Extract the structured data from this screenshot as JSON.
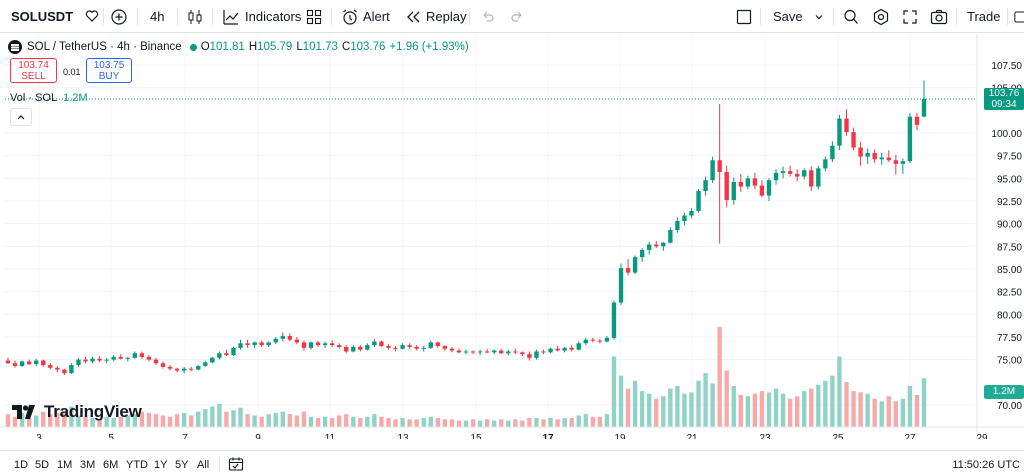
{
  "toolbar": {
    "symbol": "SOLUSDT",
    "interval": "4h",
    "indicators_label": "Indicators",
    "alert_label": "Alert",
    "replay_label": "Replay",
    "save_label": "Save",
    "trade_label": "Trade"
  },
  "legend": {
    "title": "SOL / TetherUS · 4h · Binance",
    "open_key": "O",
    "open_val": "101.81",
    "high_key": "H",
    "high_val": "105.79",
    "low_key": "L",
    "low_val": "101.73",
    "close_key": "C",
    "close_val": "103.76",
    "change": "+1.96 (+1.93%)"
  },
  "trade": {
    "sell_price": "103.74",
    "sell_label": "SELL",
    "spread": "0.01",
    "buy_price": "103.75",
    "buy_label": "BUY"
  },
  "volume_legend": {
    "label": "Vol · SOL",
    "value": "1.2M"
  },
  "price_axis": {
    "ticks": [
      "107.50",
      "105.00",
      "100.00",
      "97.50",
      "95.00",
      "92.50",
      "90.00",
      "87.50",
      "85.00",
      "82.50",
      "80.00",
      "77.50",
      "75.00",
      "70.00"
    ],
    "last_price": "103.76",
    "countdown": "09:34",
    "volume_badge": "1.2M"
  },
  "time_axis": {
    "ticks": [
      "3",
      "5",
      "7",
      "9",
      "11",
      "13",
      "15",
      "17",
      "19",
      "21",
      "23",
      "25",
      "27",
      "29"
    ]
  },
  "watermark": "TradingView",
  "bottom": {
    "ranges": [
      "1D",
      "5D",
      "1M",
      "3M",
      "6M",
      "YTD",
      "1Y",
      "5Y",
      "All"
    ],
    "clock": "11:50:26 UTC"
  },
  "colors": {
    "up": "#089981",
    "down": "#f23645",
    "up_vol": "#8fd3c6",
    "down_vol": "#f7a9a7"
  },
  "chart_data": {
    "type": "candlestick",
    "title": "SOL / TetherUS · 4h · Binance",
    "ylim": [
      69,
      108.5
    ],
    "y_ticks": [
      70,
      75,
      77.5,
      80,
      82.5,
      85,
      87.5,
      90,
      92.5,
      95,
      97.5,
      100,
      105,
      107.5
    ],
    "x_ticks": [
      "3",
      "5",
      "7",
      "9",
      "11",
      "13",
      "15",
      "17",
      "19",
      "21",
      "23",
      "25",
      "27",
      "29"
    ],
    "last_close": 103.76,
    "candles": [
      [
        74.9,
        75.2,
        74.5,
        74.6
      ],
      [
        74.6,
        74.9,
        74.1,
        74.3
      ],
      [
        74.3,
        74.9,
        74.2,
        74.8
      ],
      [
        74.8,
        75.0,
        74.4,
        74.5
      ],
      [
        74.5,
        75.1,
        74.3,
        74.9
      ],
      [
        74.9,
        75.0,
        74.2,
        74.4
      ],
      [
        74.4,
        74.6,
        73.9,
        74.1
      ],
      [
        74.1,
        74.3,
        73.6,
        73.9
      ],
      [
        73.9,
        74.0,
        73.3,
        73.5
      ],
      [
        73.5,
        74.6,
        73.4,
        74.4
      ],
      [
        74.4,
        75.2,
        74.2,
        75.0
      ],
      [
        75.0,
        75.3,
        74.6,
        74.8
      ],
      [
        74.8,
        75.3,
        74.6,
        75.1
      ],
      [
        75.1,
        75.4,
        74.7,
        74.9
      ],
      [
        74.9,
        75.2,
        74.6,
        75.0
      ],
      [
        75.0,
        75.5,
        74.8,
        75.3
      ],
      [
        75.3,
        75.6,
        75.0,
        75.1
      ],
      [
        75.1,
        75.3,
        74.8,
        75.2
      ],
      [
        75.2,
        75.9,
        75.1,
        75.7
      ],
      [
        75.7,
        75.9,
        75.1,
        75.3
      ],
      [
        75.3,
        75.5,
        74.8,
        75.0
      ],
      [
        75.0,
        75.2,
        74.4,
        74.6
      ],
      [
        74.6,
        74.8,
        74.0,
        74.2
      ],
      [
        74.2,
        74.4,
        73.8,
        74.0
      ],
      [
        74.0,
        74.1,
        73.6,
        73.8
      ],
      [
        73.8,
        74.2,
        73.5,
        74.0
      ],
      [
        74.0,
        74.2,
        73.7,
        73.9
      ],
      [
        73.9,
        74.4,
        73.8,
        74.3
      ],
      [
        74.3,
        74.9,
        74.2,
        74.7
      ],
      [
        74.7,
        75.3,
        74.6,
        75.2
      ],
      [
        75.2,
        75.9,
        75.0,
        75.7
      ],
      [
        75.7,
        76.1,
        75.4,
        75.5
      ],
      [
        75.5,
        76.4,
        75.4,
        76.3
      ],
      [
        76.3,
        77.2,
        76.1,
        76.8
      ],
      [
        76.8,
        77.2,
        76.3,
        76.6
      ],
      [
        76.6,
        77.0,
        76.3,
        76.9
      ],
      [
        76.9,
        77.1,
        76.4,
        76.6
      ],
      [
        76.6,
        77.0,
        76.4,
        76.9
      ],
      [
        76.9,
        77.5,
        76.7,
        77.3
      ],
      [
        77.3,
        78.0,
        77.0,
        77.6
      ],
      [
        77.6,
        77.9,
        77.0,
        77.2
      ],
      [
        77.2,
        77.5,
        76.7,
        76.9
      ],
      [
        76.9,
        77.1,
        76.0,
        76.3
      ],
      [
        76.3,
        77.0,
        76.1,
        76.9
      ],
      [
        76.9,
        77.1,
        76.4,
        76.6
      ],
      [
        76.6,
        77.0,
        76.3,
        76.8
      ],
      [
        76.8,
        77.1,
        76.4,
        76.6
      ],
      [
        76.6,
        76.8,
        76.2,
        76.4
      ],
      [
        76.4,
        76.6,
        75.7,
        75.9
      ],
      [
        75.9,
        76.6,
        75.8,
        76.4
      ],
      [
        76.4,
        76.6,
        75.9,
        76.1
      ],
      [
        76.1,
        76.8,
        76.0,
        76.6
      ],
      [
        76.6,
        77.3,
        76.4,
        77.0
      ],
      [
        77.0,
        77.1,
        76.4,
        76.5
      ],
      [
        76.5,
        76.7,
        76.1,
        76.3
      ],
      [
        76.3,
        76.5,
        75.9,
        76.2
      ],
      [
        76.2,
        76.8,
        76.1,
        76.6
      ],
      [
        76.6,
        76.8,
        76.2,
        76.4
      ],
      [
        76.4,
        76.6,
        76.0,
        76.2
      ],
      [
        76.2,
        76.5,
        75.9,
        76.3
      ],
      [
        76.3,
        77.1,
        76.2,
        76.9
      ],
      [
        76.9,
        77.0,
        76.3,
        76.5
      ],
      [
        76.5,
        76.6,
        76.0,
        76.2
      ],
      [
        76.2,
        76.4,
        75.8,
        76.0
      ],
      [
        76.0,
        76.2,
        75.7,
        75.8
      ],
      [
        75.8,
        76.1,
        75.6,
        75.9
      ],
      [
        75.9,
        76.0,
        75.6,
        75.8
      ],
      [
        75.8,
        76.1,
        75.5,
        75.9
      ],
      [
        75.9,
        76.2,
        75.7,
        75.8
      ],
      [
        75.8,
        76.1,
        75.6,
        76.0
      ],
      [
        76.0,
        76.2,
        75.6,
        75.7
      ],
      [
        75.7,
        76.1,
        75.5,
        75.9
      ],
      [
        75.9,
        76.2,
        75.6,
        75.8
      ],
      [
        75.8,
        75.9,
        75.4,
        75.6
      ],
      [
        75.6,
        75.9,
        74.9,
        75.2
      ],
      [
        75.2,
        76.1,
        75.0,
        75.9
      ],
      [
        75.9,
        76.1,
        75.6,
        75.8
      ],
      [
        75.8,
        76.3,
        75.7,
        76.2
      ],
      [
        76.2,
        76.5,
        75.9,
        76.0
      ],
      [
        76.0,
        76.4,
        75.8,
        76.3
      ],
      [
        76.3,
        76.6,
        75.9,
        76.1
      ],
      [
        76.1,
        77.0,
        76.0,
        76.8
      ],
      [
        76.8,
        77.4,
        76.6,
        77.2
      ],
      [
        77.2,
        77.4,
        76.9,
        77.1
      ],
      [
        77.1,
        77.3,
        76.8,
        77.0
      ],
      [
        77.0,
        77.6,
        76.9,
        77.4
      ],
      [
        77.4,
        81.5,
        77.2,
        81.3
      ],
      [
        81.3,
        85.6,
        81.0,
        85.1
      ],
      [
        85.1,
        86.1,
        84.3,
        84.6
      ],
      [
        84.6,
        86.5,
        84.4,
        86.3
      ],
      [
        86.3,
        87.3,
        85.8,
        87.1
      ],
      [
        87.1,
        88.0,
        86.6,
        87.7
      ],
      [
        87.7,
        88.1,
        87.3,
        87.5
      ],
      [
        87.5,
        88.0,
        87.0,
        87.9
      ],
      [
        87.9,
        89.6,
        87.8,
        89.3
      ],
      [
        89.3,
        90.7,
        89.0,
        90.3
      ],
      [
        90.3,
        91.2,
        89.8,
        90.9
      ],
      [
        90.9,
        91.7,
        90.6,
        91.4
      ],
      [
        91.4,
        93.8,
        91.2,
        93.6
      ],
      [
        93.6,
        95.2,
        93.1,
        94.8
      ],
      [
        94.8,
        97.4,
        94.5,
        97.0
      ],
      [
        97.0,
        103.2,
        87.8,
        95.7
      ],
      [
        95.7,
        96.4,
        91.8,
        92.6
      ],
      [
        92.6,
        95.1,
        92.1,
        94.6
      ],
      [
        94.6,
        95.5,
        93.5,
        94.1
      ],
      [
        94.1,
        95.3,
        93.8,
        95.0
      ],
      [
        95.0,
        95.6,
        93.8,
        94.2
      ],
      [
        94.2,
        94.8,
        92.9,
        93.1
      ],
      [
        93.1,
        95.0,
        92.5,
        94.8
      ],
      [
        94.8,
        96.0,
        94.3,
        95.6
      ],
      [
        95.6,
        96.3,
        95.0,
        95.8
      ],
      [
        95.8,
        96.4,
        95.2,
        95.5
      ],
      [
        95.5,
        96.0,
        94.7,
        95.2
      ],
      [
        95.2,
        96.1,
        94.9,
        95.9
      ],
      [
        95.9,
        96.3,
        93.6,
        94.1
      ],
      [
        94.1,
        96.4,
        93.8,
        96.1
      ],
      [
        96.1,
        97.4,
        95.8,
        97.1
      ],
      [
        97.1,
        99.1,
        96.8,
        98.6
      ],
      [
        98.6,
        102.0,
        98.1,
        101.6
      ],
      [
        101.6,
        102.6,
        99.7,
        100.1
      ],
      [
        100.1,
        100.6,
        98.1,
        98.4
      ],
      [
        98.4,
        99.0,
        96.4,
        97.4
      ],
      [
        97.4,
        98.3,
        96.6,
        97.8
      ],
      [
        97.8,
        98.2,
        96.7,
        97.1
      ],
      [
        97.1,
        97.8,
        96.5,
        97.3
      ],
      [
        97.3,
        98.1,
        96.8,
        97.0
      ],
      [
        97.0,
        97.6,
        95.4,
        96.6
      ],
      [
        96.6,
        97.2,
        95.5,
        96.9
      ],
      [
        96.9,
        102.2,
        96.7,
        101.8
      ],
      [
        101.8,
        102.2,
        100.3,
        100.9
      ],
      [
        101.81,
        105.79,
        101.73,
        103.76
      ]
    ],
    "volume": [
      0.1,
      0.08,
      0.11,
      0.07,
      0.09,
      0.12,
      0.1,
      0.11,
      0.12,
      0.16,
      0.09,
      0.08,
      0.07,
      0.06,
      0.08,
      0.07,
      0.08,
      0.09,
      0.1,
      0.12,
      0.11,
      0.1,
      0.09,
      0.08,
      0.1,
      0.11,
      0.09,
      0.12,
      0.14,
      0.16,
      0.18,
      0.12,
      0.13,
      0.15,
      0.1,
      0.09,
      0.08,
      0.1,
      0.11,
      0.12,
      0.1,
      0.09,
      0.12,
      0.08,
      0.07,
      0.08,
      0.07,
      0.09,
      0.1,
      0.08,
      0.07,
      0.08,
      0.1,
      0.08,
      0.07,
      0.06,
      0.07,
      0.06,
      0.06,
      0.07,
      0.08,
      0.07,
      0.06,
      0.06,
      0.05,
      0.05,
      0.06,
      0.05,
      0.06,
      0.05,
      0.06,
      0.05,
      0.06,
      0.05,
      0.07,
      0.07,
      0.06,
      0.07,
      0.06,
      0.07,
      0.07,
      0.09,
      0.1,
      0.08,
      0.08,
      0.1,
      0.55,
      0.4,
      0.3,
      0.36,
      0.28,
      0.26,
      0.22,
      0.24,
      0.3,
      0.32,
      0.26,
      0.27,
      0.36,
      0.42,
      0.34,
      0.78,
      0.44,
      0.32,
      0.25,
      0.24,
      0.26,
      0.28,
      0.27,
      0.3,
      0.26,
      0.22,
      0.24,
      0.28,
      0.3,
      0.33,
      0.36,
      0.4,
      0.55,
      0.35,
      0.28,
      0.27,
      0.26,
      0.22,
      0.2,
      0.24,
      0.2,
      0.22,
      0.32,
      0.25,
      0.38
    ]
  }
}
